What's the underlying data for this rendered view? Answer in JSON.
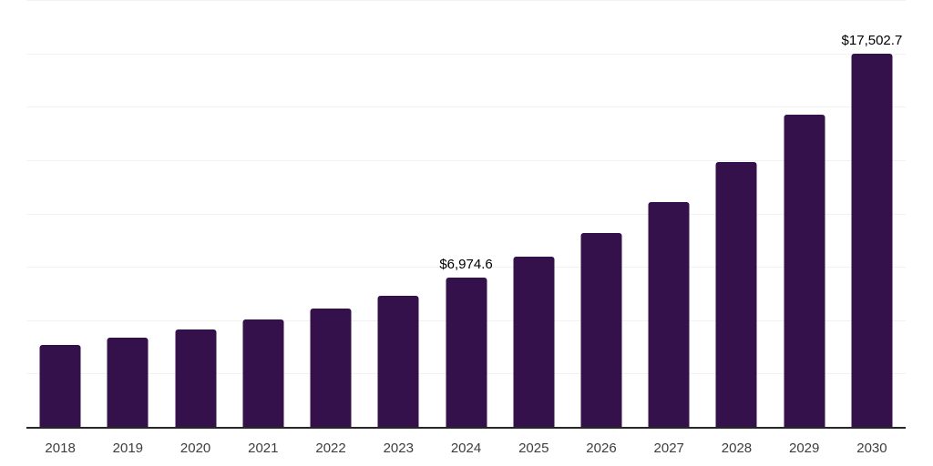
{
  "chart_data": {
    "type": "bar",
    "title": "",
    "xlabel": "",
    "ylabel": "",
    "categories": [
      "2018",
      "2019",
      "2020",
      "2021",
      "2022",
      "2023",
      "2024",
      "2025",
      "2026",
      "2027",
      "2028",
      "2029",
      "2030"
    ],
    "values": [
      3830,
      4170,
      4570,
      5030,
      5530,
      6155,
      6974.6,
      7970,
      9080,
      10520,
      12390,
      14645,
      17502.7
    ],
    "bar_labels": [
      "",
      "",
      "",
      "",
      "",
      "",
      "$6,974.6",
      "",
      "",
      "",
      "",
      "",
      "$17,502.7"
    ],
    "ylim": [
      0,
      20000
    ],
    "grid_step": 2500,
    "grid": true,
    "legend": false,
    "y_axis_labels_visible": false
  },
  "style": {
    "bar_color": "#34114B",
    "grid_color": "#F2F2F2",
    "axis_color": "#262626",
    "tick_label_color": "#3D3D3D",
    "value_label_color": "#000000",
    "background_color": "#FFFFFF"
  }
}
